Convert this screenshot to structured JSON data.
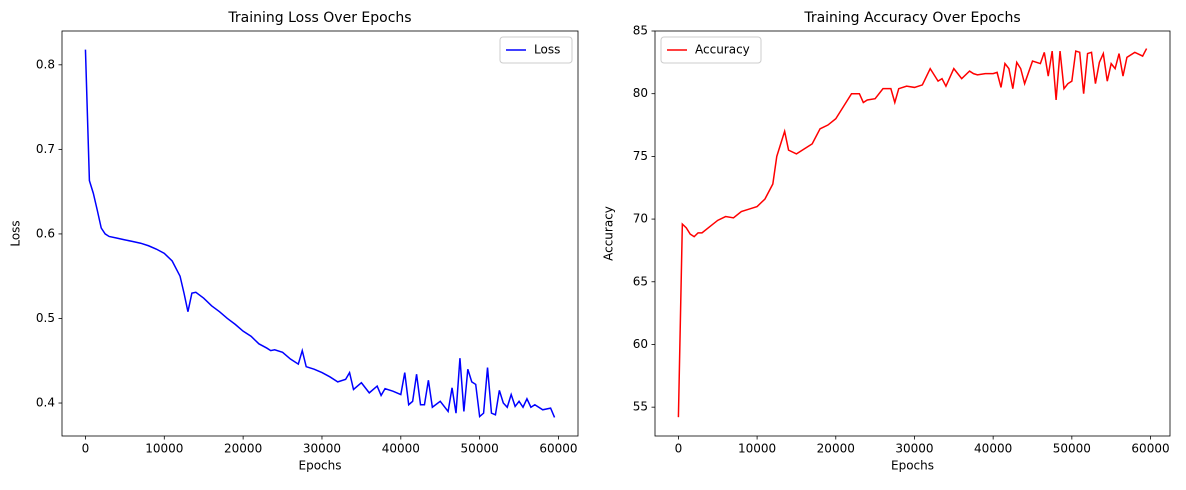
{
  "chart_data": [
    {
      "type": "line",
      "title": "Training Loss Over Epochs",
      "x_label": "Epochs",
      "y_label": "Loss",
      "x": [
        0,
        500,
        1000,
        1500,
        2000,
        2500,
        3000,
        4000,
        5000,
        6000,
        7000,
        8000,
        9000,
        10000,
        11000,
        12000,
        12500,
        13000,
        13500,
        14000,
        15000,
        16000,
        17000,
        18000,
        19000,
        20000,
        21000,
        22000,
        23000,
        23500,
        24000,
        25000,
        26000,
        27000,
        27500,
        28000,
        29000,
        30000,
        31000,
        32000,
        33000,
        33500,
        34000,
        35000,
        36000,
        37000,
        37500,
        38000,
        39000,
        40000,
        40500,
        41000,
        41500,
        42000,
        42500,
        43000,
        43500,
        44000,
        45000,
        46000,
        46500,
        47000,
        47500,
        48000,
        48500,
        49000,
        49500,
        50000,
        50500,
        51000,
        51500,
        52000,
        52500,
        53000,
        53500,
        54000,
        54500,
        55000,
        55500,
        56000,
        56500,
        57000,
        58000,
        59000,
        59500
      ],
      "series": [
        {
          "name": "Loss",
          "color": "#0000ff",
          "values": [
            0.818,
            0.663,
            0.648,
            0.628,
            0.607,
            0.6,
            0.597,
            0.595,
            0.593,
            0.591,
            0.589,
            0.586,
            0.582,
            0.577,
            0.568,
            0.55,
            0.53,
            0.508,
            0.53,
            0.531,
            0.524,
            0.515,
            0.508,
            0.5,
            0.493,
            0.485,
            0.479,
            0.47,
            0.465,
            0.462,
            0.463,
            0.46,
            0.452,
            0.446,
            0.462,
            0.443,
            0.44,
            0.436,
            0.431,
            0.425,
            0.428,
            0.436,
            0.416,
            0.424,
            0.412,
            0.42,
            0.409,
            0.417,
            0.414,
            0.41,
            0.436,
            0.398,
            0.402,
            0.434,
            0.398,
            0.398,
            0.427,
            0.395,
            0.402,
            0.39,
            0.418,
            0.388,
            0.453,
            0.39,
            0.44,
            0.425,
            0.422,
            0.384,
            0.388,
            0.442,
            0.388,
            0.386,
            0.415,
            0.4,
            0.395,
            0.41,
            0.396,
            0.402,
            0.395,
            0.405,
            0.395,
            0.398,
            0.392,
            0.394,
            0.383
          ]
        }
      ],
      "xlim": [
        -2975,
        62475
      ],
      "ylim": [
        0.361,
        0.84
      ],
      "xticks": [
        0,
        10000,
        20000,
        30000,
        40000,
        50000,
        60000
      ],
      "yticks": [
        0.4,
        0.5,
        0.6,
        0.7,
        0.8
      ],
      "legend": "upper right"
    },
    {
      "type": "line",
      "title": "Training Accuracy Over Epochs",
      "x_label": "Epochs",
      "y_label": "Accuracy",
      "x": [
        0,
        500,
        1000,
        1500,
        2000,
        2500,
        3000,
        4000,
        5000,
        6000,
        7000,
        8000,
        9000,
        10000,
        11000,
        12000,
        12500,
        13000,
        13500,
        14000,
        15000,
        16000,
        17000,
        18000,
        19000,
        20000,
        21000,
        22000,
        23000,
        23500,
        24000,
        25000,
        26000,
        27000,
        27500,
        28000,
        29000,
        30000,
        31000,
        32000,
        33000,
        33500,
        34000,
        35000,
        36000,
        37000,
        37500,
        38000,
        39000,
        40000,
        40500,
        41000,
        41500,
        42000,
        42500,
        43000,
        43500,
        44000,
        45000,
        46000,
        46500,
        47000,
        47500,
        48000,
        48500,
        49000,
        49500,
        50000,
        50500,
        51000,
        51500,
        52000,
        52500,
        53000,
        53500,
        54000,
        54500,
        55000,
        55500,
        56000,
        56500,
        57000,
        58000,
        59000,
        59500
      ],
      "series": [
        {
          "name": "Accuracy",
          "color": "#ff0000",
          "values": [
            54.2,
            69.6,
            69.3,
            68.8,
            68.6,
            68.9,
            68.9,
            69.4,
            69.9,
            70.2,
            70.1,
            70.6,
            70.8,
            71.0,
            71.6,
            72.8,
            75.0,
            76.0,
            77.0,
            75.5,
            75.2,
            75.6,
            76.0,
            77.2,
            77.5,
            78.0,
            79.0,
            80.0,
            80.0,
            79.3,
            79.5,
            79.6,
            80.4,
            80.4,
            79.3,
            80.4,
            80.6,
            80.5,
            80.7,
            82.0,
            81.0,
            81.2,
            80.6,
            82.0,
            81.2,
            81.8,
            81.6,
            81.5,
            81.6,
            81.6,
            81.7,
            80.5,
            82.4,
            82.0,
            80.4,
            82.5,
            82.0,
            80.8,
            82.6,
            82.4,
            83.3,
            81.4,
            83.4,
            79.5,
            83.4,
            80.4,
            80.8,
            81.0,
            83.4,
            83.3,
            80.0,
            83.2,
            83.3,
            80.8,
            82.5,
            83.2,
            81.0,
            82.4,
            82.0,
            83.2,
            81.4,
            82.9,
            83.3,
            83.0,
            83.6
          ]
        }
      ],
      "xlim": [
        -2975,
        62475
      ],
      "ylim": [
        52.7,
        85.0
      ],
      "xticks": [
        0,
        10000,
        20000,
        30000,
        40000,
        50000,
        60000
      ],
      "yticks": [
        55,
        60,
        65,
        70,
        75,
        80,
        85
      ],
      "legend": "upper left"
    }
  ]
}
